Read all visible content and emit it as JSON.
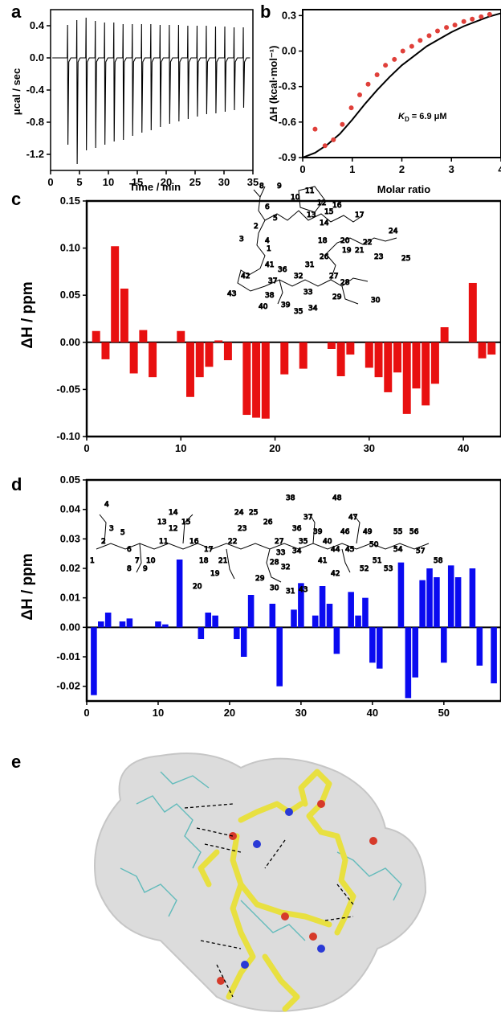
{
  "panels": [
    "a",
    "b",
    "c",
    "d",
    "e"
  ],
  "kd_label": {
    "prefix": "K",
    "sub": "D",
    "rest": " = 6.9 μM"
  },
  "chart_data": [
    {
      "id": "a",
      "type": "line",
      "xlabel": "Time / min",
      "ylabel": "μcal / sec",
      "xlim": [
        0,
        35
      ],
      "ylim": [
        -1.4,
        0.6
      ],
      "xticks": [
        0,
        5,
        10,
        15,
        20,
        25,
        30,
        35
      ],
      "yticks": [
        -1.2,
        -0.8,
        -0.4,
        0.0,
        0.4
      ],
      "ytick_labels": [
        "-1.2",
        "-0.8",
        "-0.4",
        "0.0",
        "0.4"
      ],
      "injections": {
        "times": [
          3.0,
          4.6,
          6.2,
          7.8,
          9.4,
          11.0,
          12.6,
          14.2,
          15.8,
          17.4,
          19.0,
          20.6,
          22.2,
          23.8,
          25.4,
          27.0,
          28.6,
          30.2,
          31.8,
          33.4
        ],
        "min_values": [
          -1.08,
          -1.32,
          -1.15,
          -1.12,
          -1.08,
          -1.04,
          -1.02,
          -0.97,
          -0.93,
          -0.9,
          -0.86,
          -0.82,
          -0.79,
          -0.76,
          -0.73,
          -0.7,
          -0.69,
          -0.67,
          -0.65,
          -0.62
        ],
        "max_values": [
          0.41,
          0.47,
          0.5,
          0.46,
          0.44,
          0.44,
          0.42,
          0.42,
          0.42,
          0.42,
          0.41,
          0.41,
          0.41,
          0.4,
          0.4,
          0.4,
          0.39,
          0.39,
          0.38,
          0.38
        ]
      }
    },
    {
      "id": "b",
      "type": "scatter",
      "xlabel": "Molar ratio",
      "ylabel": "ΔH (kcal·mol⁻¹)",
      "xlim": [
        0,
        4
      ],
      "ylim": [
        -0.9,
        0.35
      ],
      "xticks": [
        0,
        1,
        2,
        3,
        4
      ],
      "yticks": [
        -0.9,
        -0.6,
        -0.3,
        0.0,
        0.3
      ],
      "ytick_labels": [
        "-0.9",
        "-0.6",
        "-0.3",
        "0.0",
        "0.3"
      ],
      "points_x": [
        0.25,
        0.45,
        0.62,
        0.8,
        0.98,
        1.15,
        1.32,
        1.5,
        1.67,
        1.85,
        2.02,
        2.2,
        2.37,
        2.55,
        2.72,
        2.9,
        3.07,
        3.25,
        3.42,
        3.6,
        3.77
      ],
      "points_y": [
        -0.66,
        -0.8,
        -0.75,
        -0.62,
        -0.48,
        -0.37,
        -0.28,
        -0.2,
        -0.12,
        -0.07,
        0.0,
        0.04,
        0.09,
        0.13,
        0.17,
        0.2,
        0.22,
        0.25,
        0.27,
        0.29,
        0.31
      ],
      "fit_x": [
        0,
        0.25,
        0.5,
        0.75,
        1.0,
        1.25,
        1.5,
        1.75,
        2.0,
        2.25,
        2.5,
        2.75,
        3.0,
        3.25,
        3.5,
        3.75,
        4.0
      ],
      "fit_y": [
        -0.9,
        -0.86,
        -0.79,
        -0.7,
        -0.58,
        -0.45,
        -0.33,
        -0.22,
        -0.12,
        -0.04,
        0.04,
        0.1,
        0.16,
        0.21,
        0.25,
        0.29,
        0.32
      ],
      "point_color": "#e0403a",
      "fit_color": "#000000"
    },
    {
      "id": "c",
      "type": "bar",
      "xlabel": "",
      "ylabel": "ΔH / ppm",
      "xlim": [
        0,
        44
      ],
      "ylim": [
        -0.1,
        0.15
      ],
      "xticks": [
        0,
        10,
        20,
        30,
        40
      ],
      "yticks": [
        -0.1,
        -0.05,
        0.0,
        0.05,
        0.1,
        0.15
      ],
      "ytick_labels": [
        "-0.10",
        "-0.05",
        "0.00",
        "0.05",
        "0.10",
        "0.15"
      ],
      "x": [
        1,
        2,
        3,
        4,
        5,
        6,
        7,
        10,
        11,
        12,
        13,
        14,
        15,
        17,
        18,
        19,
        21,
        23,
        26,
        27,
        28,
        30,
        31,
        32,
        33,
        34,
        35,
        36,
        37,
        38,
        41,
        42,
        43
      ],
      "values": [
        0.012,
        -0.018,
        0.102,
        0.057,
        -0.033,
        0.013,
        -0.037,
        0.012,
        -0.058,
        -0.037,
        -0.026,
        0.002,
        -0.019,
        -0.077,
        -0.08,
        -0.081,
        -0.034,
        -0.028,
        -0.007,
        -0.036,
        -0.013,
        -0.027,
        -0.037,
        -0.053,
        -0.032,
        -0.076,
        -0.049,
        -0.067,
        -0.044,
        0.016,
        0.063,
        -0.017,
        -0.013
      ],
      "color": "#e81010"
    },
    {
      "id": "d",
      "type": "bar",
      "xlabel": "",
      "ylabel": "ΔH / ppm",
      "xlim": [
        0,
        58
      ],
      "ylim": [
        -0.025,
        0.05
      ],
      "xticks": [
        0,
        10,
        20,
        30,
        40,
        50
      ],
      "yticks": [
        -0.02,
        -0.01,
        0.0,
        0.01,
        0.02,
        0.03,
        0.04,
        0.05
      ],
      "ytick_labels": [
        "-0.02",
        "-0.01",
        "0.00",
        "0.01",
        "0.02",
        "0.03",
        "0.04",
        "0.05"
      ],
      "x": [
        1,
        2,
        3,
        5,
        6,
        10,
        11,
        13,
        16,
        17,
        18,
        21,
        22,
        23,
        26,
        27,
        29,
        30,
        32,
        33,
        34,
        35,
        37,
        38,
        39,
        40,
        41,
        44,
        45,
        46,
        47,
        48,
        49,
        50,
        51,
        52,
        54,
        55,
        57
      ],
      "values": [
        -0.023,
        0.002,
        0.005,
        0.002,
        0.003,
        0.002,
        0.001,
        0.023,
        -0.004,
        0.005,
        0.004,
        -0.004,
        -0.01,
        0.011,
        0.008,
        -0.02,
        0.006,
        0.015,
        0.004,
        0.014,
        0.008,
        -0.009,
        0.012,
        0.004,
        0.01,
        -0.012,
        -0.014,
        0.022,
        -0.024,
        -0.017,
        0.016,
        0.02,
        0.017,
        -0.012,
        0.021,
        0.017,
        0.02,
        -0.013,
        -0.019
      ],
      "color": "#0a0af0"
    }
  ]
}
